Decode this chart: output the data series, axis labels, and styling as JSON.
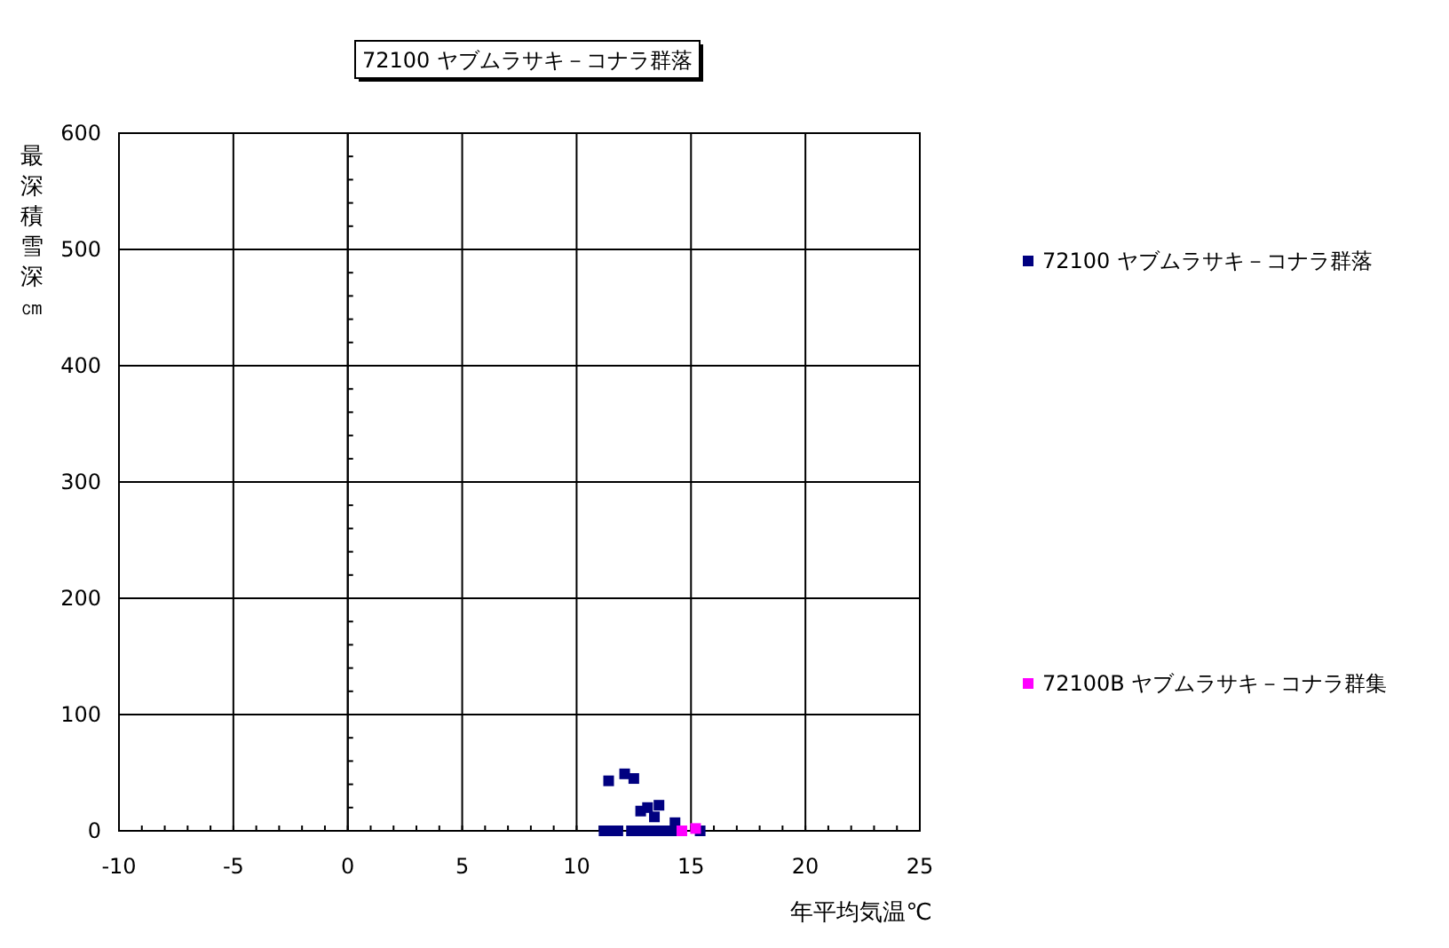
{
  "chart_data": {
    "type": "scatter",
    "title": "72100 ヤブムラサキ－コナラ群落",
    "xlabel": "年平均気温℃",
    "ylabel": "最深積雪深㎝",
    "xlim": [
      -10,
      25
    ],
    "ylim": [
      0,
      600
    ],
    "xticks": [
      -10,
      {
        "value": -9,
        "label": null
      },
      {
        "value": -8,
        "label": null
      },
      {
        "value": -7,
        "label": null
      },
      {
        "value": -6,
        "label": null
      },
      -5,
      {
        "value": -4,
        "label": null
      },
      {
        "value": -3,
        "label": null
      },
      {
        "value": -2,
        "label": null
      },
      {
        "value": -1,
        "label": null
      },
      0,
      {
        "value": 1,
        "label": null
      },
      {
        "value": 2,
        "label": null
      },
      {
        "value": 3,
        "label": null
      },
      {
        "value": 4,
        "label": null
      },
      5,
      {
        "value": 6,
        "label": null
      },
      {
        "value": 7,
        "label": null
      },
      {
        "value": 8,
        "label": null
      },
      {
        "value": 9,
        "label": null
      },
      10,
      {
        "value": 11,
        "label": null
      },
      {
        "value": 12,
        "label": null
      },
      {
        "value": 13,
        "label": null
      },
      {
        "value": 14,
        "label": null
      },
      15,
      {
        "value": 16,
        "label": null
      },
      {
        "value": 17,
        "label": null
      },
      {
        "value": 18,
        "label": null
      },
      {
        "value": 19,
        "label": null
      },
      20,
      {
        "value": 21,
        "label": null
      },
      {
        "value": 22,
        "label": null
      },
      {
        "value": 23,
        "label": null
      },
      {
        "value": 24,
        "label": null
      },
      25
    ],
    "yticks": [
      0,
      {
        "value": 20,
        "label": null
      },
      {
        "value": 40,
        "label": null
      },
      {
        "value": 60,
        "label": null
      },
      {
        "value": 80,
        "label": null
      },
      100,
      {
        "value": 120,
        "label": null
      },
      {
        "value": 140,
        "label": null
      },
      {
        "value": 160,
        "label": null
      },
      {
        "value": 180,
        "label": null
      },
      200,
      {
        "value": 220,
        "label": null
      },
      {
        "value": 240,
        "label": null
      },
      {
        "value": 260,
        "label": null
      },
      {
        "value": 280,
        "label": null
      },
      300,
      {
        "value": 320,
        "label": null
      },
      {
        "value": 340,
        "label": null
      },
      {
        "value": 360,
        "label": null
      },
      {
        "value": 380,
        "label": null
      },
      400,
      {
        "value": 420,
        "label": null
      },
      {
        "value": 440,
        "label": null
      },
      {
        "value": 460,
        "label": null
      },
      {
        "value": 480,
        "label": null
      },
      500,
      {
        "value": 520,
        "label": null
      },
      {
        "value": 540,
        "label": null
      },
      {
        "value": 560,
        "label": null
      },
      {
        "value": 580,
        "label": null
      },
      600
    ],
    "grid": true,
    "legend": "right",
    "marker": "square",
    "series": [
      {
        "name": "72100 ヤブムラサキ－コナラ群落",
        "color": "#000080",
        "x": [
          11.4,
          12.1,
          12.5,
          12.8,
          13.1,
          13.6,
          13.4,
          14.3,
          11.2,
          11.5,
          11.8,
          12.4,
          12.7,
          13.0,
          13.3,
          13.6,
          13.9,
          14.2,
          15.4
        ],
        "values": [
          43,
          49,
          45,
          17,
          20,
          22,
          12,
          7,
          0,
          0,
          0,
          0,
          0,
          0,
          0,
          0,
          0,
          0,
          0
        ]
      },
      {
        "name": "72100B ヤブムラサキ－コナラ群集",
        "color": "#ff00ff",
        "x": [
          14.6,
          15.2
        ],
        "values": [
          0,
          2
        ]
      }
    ]
  }
}
